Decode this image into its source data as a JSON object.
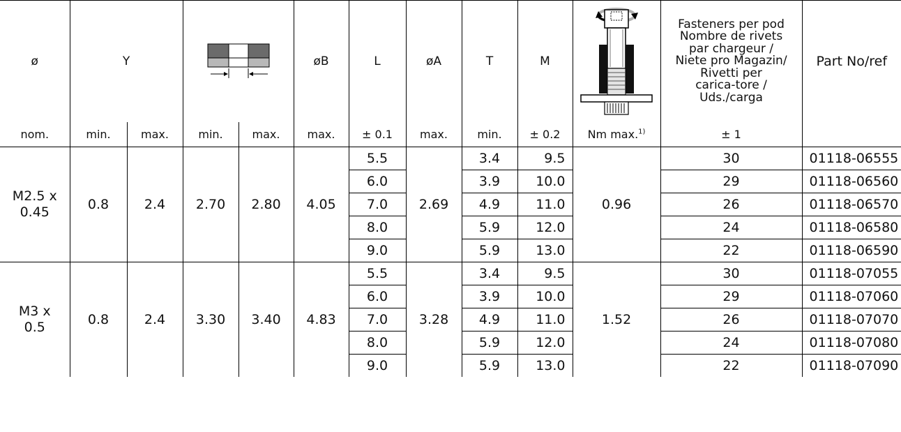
{
  "headers": {
    "dia": "ø",
    "y": "Y",
    "ob": "øB",
    "l": "L",
    "oa": "øA",
    "t": "T",
    "m": "M",
    "fasteners": "Fasteners per pod Nombre de rivets par chargeur / Niete pro Magazin/ Rivetti per carica-tore / Uds./carga",
    "fasteners_lines": [
      "Fasteners per pod",
      "Nombre de rivets",
      "par chargeur /",
      "Niete pro Magazin/",
      "Rivetti per",
      "carica-tore /",
      "Uds./carga"
    ],
    "part": "Part No/ref"
  },
  "units": {
    "dia": "nom.",
    "y_min": "min.",
    "y_max": "max.",
    "g_min": "min.",
    "g_max": "max.",
    "ob": "max.",
    "l": "± 0.1",
    "oa": "max.",
    "t": "min.",
    "m": "± 0.2",
    "torque": "Nm max.",
    "torque_note": "1)",
    "fasteners": "± 1"
  },
  "groups": [
    {
      "size": "M2.5 x 0.45",
      "size_lines": [
        "M2.5 x",
        "0.45"
      ],
      "y_min": "0.8",
      "y_max": "2.4",
      "g_min": "2.70",
      "g_max": "2.80",
      "ob": "4.05",
      "oa": "2.69",
      "torque": "0.96",
      "rows": [
        {
          "l": "5.5",
          "t": "3.4",
          "m": "9.5",
          "qty": "30",
          "part": "01118-06555"
        },
        {
          "l": "6.0",
          "t": "3.9",
          "m": "10.0",
          "qty": "29",
          "part": "01118-06560"
        },
        {
          "l": "7.0",
          "t": "4.9",
          "m": "11.0",
          "qty": "26",
          "part": "01118-06570"
        },
        {
          "l": "8.0",
          "t": "5.9",
          "m": "12.0",
          "qty": "24",
          "part": "01118-06580"
        },
        {
          "l": "9.0",
          "t": "5.9",
          "m": "13.0",
          "qty": "22",
          "part": "01118-06590"
        }
      ]
    },
    {
      "size": "M3 x 0.5",
      "size_lines": [
        "M3 x",
        "0.5"
      ],
      "y_min": "0.8",
      "y_max": "2.4",
      "g_min": "3.30",
      "g_max": "3.40",
      "ob": "4.83",
      "oa": "3.28",
      "torque": "1.52",
      "rows": [
        {
          "l": "5.5",
          "t": "3.4",
          "m": "9.5",
          "qty": "30",
          "part": "01118-07055"
        },
        {
          "l": "6.0",
          "t": "3.9",
          "m": "10.0",
          "qty": "29",
          "part": "01118-07060"
        },
        {
          "l": "7.0",
          "t": "4.9",
          "m": "11.0",
          "qty": "26",
          "part": "01118-07070"
        },
        {
          "l": "8.0",
          "t": "5.9",
          "m": "12.0",
          "qty": "24",
          "part": "01118-07080"
        },
        {
          "l": "9.0",
          "t": "5.9",
          "m": "13.0",
          "qty": "22",
          "part": "01118-07090"
        }
      ]
    }
  ],
  "icons": {
    "grip_gauge": "grip-range-diagram-icon",
    "torque": "torque-fastener-diagram-icon"
  }
}
